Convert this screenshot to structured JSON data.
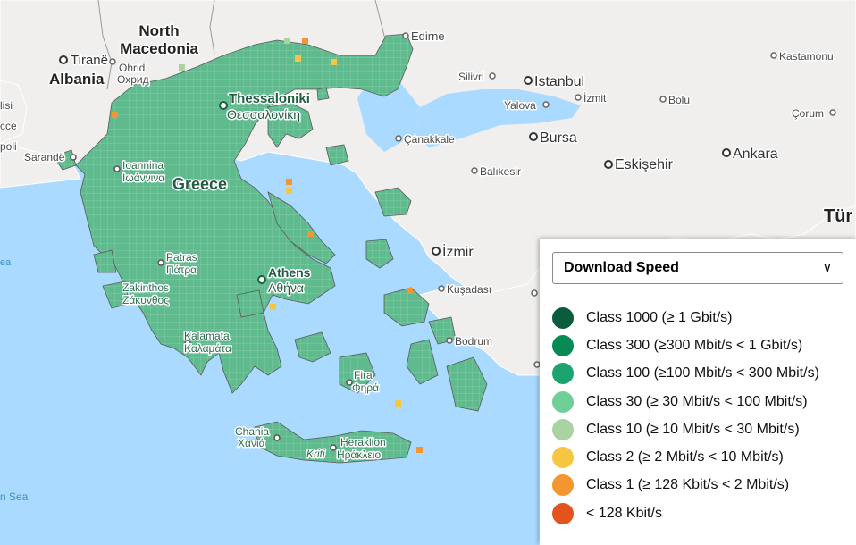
{
  "map": {
    "colors": {
      "sea": "#aadaff",
      "land": "#f0efed",
      "greece": "#5fbb8e",
      "grid": "#8fd0b0"
    },
    "labels": {
      "north_macedonia_1": "North",
      "north_macedonia_2": "Macedonia",
      "tirane": "Tiranë",
      "albania": "Albania",
      "ohrid": "Ohrid",
      "ohrid_cyr": "Охрид",
      "edirne": "Edirne",
      "silivri": "Silivri",
      "istanbul": "Istanbul",
      "izmit": "İzmit",
      "yalova": "Yalova",
      "bolu": "Bolu",
      "kastamonu": "Kastamonu",
      "corum": "Çorum",
      "canakkale": "Çanakkale",
      "bursa": "Bursa",
      "eskisehir": "Eskişehir",
      "ankara": "Ankara",
      "balikesir": "Balıkesir",
      "turkiye": "Tür",
      "izmir": "İzmir",
      "kusadasi": "Kuşadası",
      "bodrum": "Bodrum",
      "thessaloniki": "Thessaloniki",
      "thessaloniki_gr": "Θεσσαλονίκη",
      "greece": "Greece",
      "ioannina": "Ioannina",
      "ioannina_gr": "Ιωάννινα",
      "sarande": "Sarandë",
      "patras": "Patras",
      "patras_gr": "Πάτρα",
      "athens": "Athens",
      "athens_gr": "Αθήνα",
      "zakinthos": "Zakinthos",
      "zakinthos_gr": "Ζάκυνθος",
      "kalamata": "Kalamata",
      "kalamata_gr": "Καλαμάτα",
      "fira": "Fira",
      "fira_gr": "Φηρά",
      "chania": "Chania",
      "chania_gr": "Χανιά",
      "heraklion": "Heraklion",
      "heraklion_gr": "Ηράκλειο",
      "kriti": "Kriti",
      "left_1": "lisi",
      "left_2": "cce",
      "left_3": "poli",
      "sea_left": "ea",
      "sea_bottom": "n Sea"
    }
  },
  "legend": {
    "selected": "Download Speed",
    "items": [
      {
        "label": "Class 1000 (≥ 1 Gbit/s)",
        "color": "#0a5c3c"
      },
      {
        "label": "Class 300 (≥300 Mbit/s < 1 Gbit/s)",
        "color": "#078a54"
      },
      {
        "label": "Class 100 (≥100 Mbit/s < 300 Mbit/s)",
        "color": "#1ba470"
      },
      {
        "label": "Class 30 (≥ 30 Mbit/s < 100 Mbit/s)",
        "color": "#6fcf97"
      },
      {
        "label": "Class 10 (≥ 10 Mbit/s < 30 Mbit/s)",
        "color": "#a9d3a0"
      },
      {
        "label": "Class 2 (≥ 2 Mbit/s < 10 Mbit/s)",
        "color": "#f7c641"
      },
      {
        "label": "Class 1 (≥ 128 Kbit/s < 2 Mbit/s)",
        "color": "#f39530"
      },
      {
        "label": "< 128 Kbit/s",
        "color": "#e4531d"
      }
    ]
  }
}
